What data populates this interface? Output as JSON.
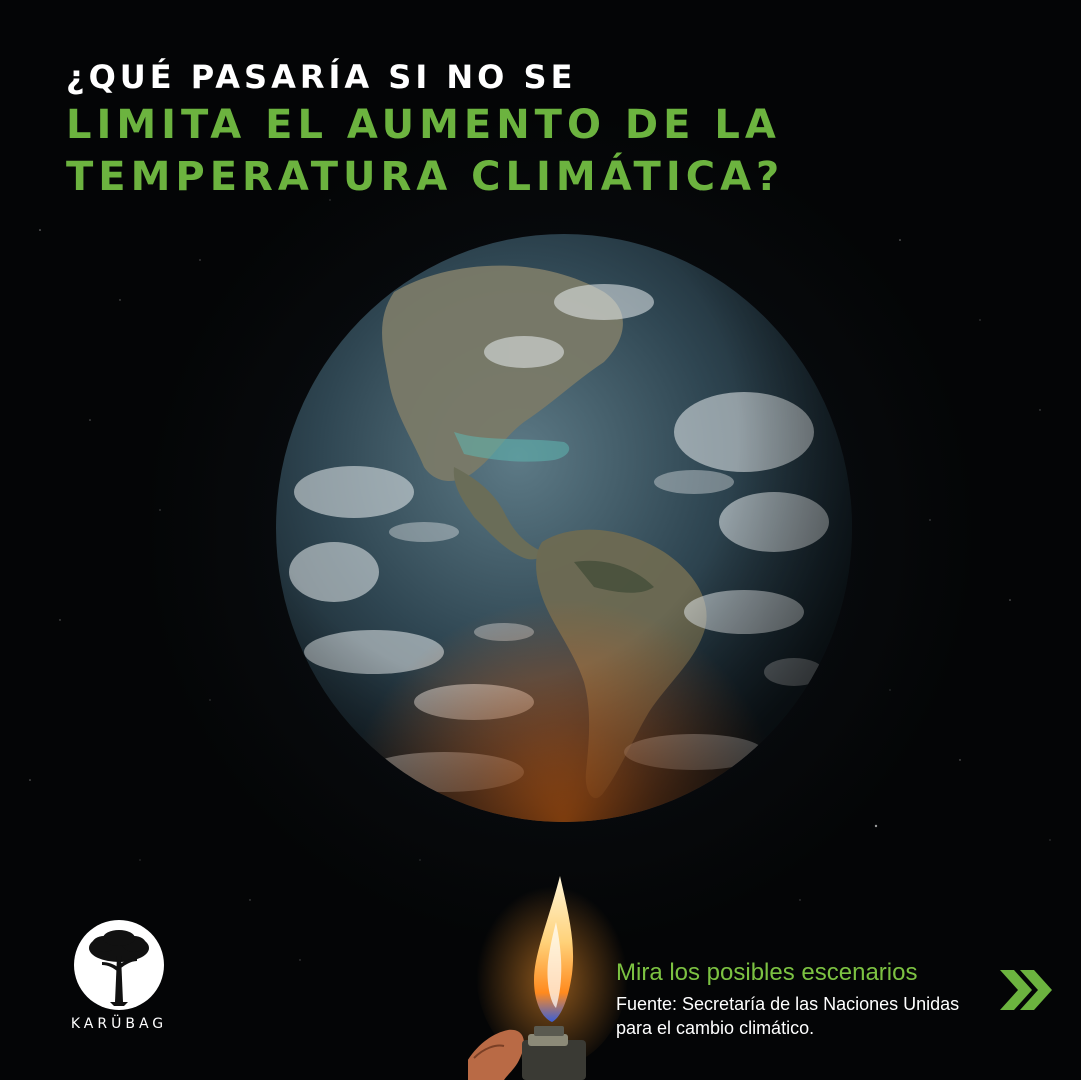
{
  "headline": {
    "line1": "¿Qué pasaría si no se",
    "line2": "limita el aumento de la",
    "line3": "temperatura climática?"
  },
  "images": {
    "globe": "earth-globe-americas",
    "flame": "lighter-flame",
    "hand": "hand-holding-lighter"
  },
  "brand": {
    "logo_icon": "tree-icon",
    "name": "KARÜBAG"
  },
  "cta": {
    "title": "Mira los posibles escenarios",
    "source": "Fuente: Secretaría de las Naciones Unidas para el cambio climático.",
    "next_icon": "double-chevron-right-icon"
  },
  "colors": {
    "background": "#040506",
    "accent_green": "#6cb33f",
    "text_white": "#ffffff"
  }
}
